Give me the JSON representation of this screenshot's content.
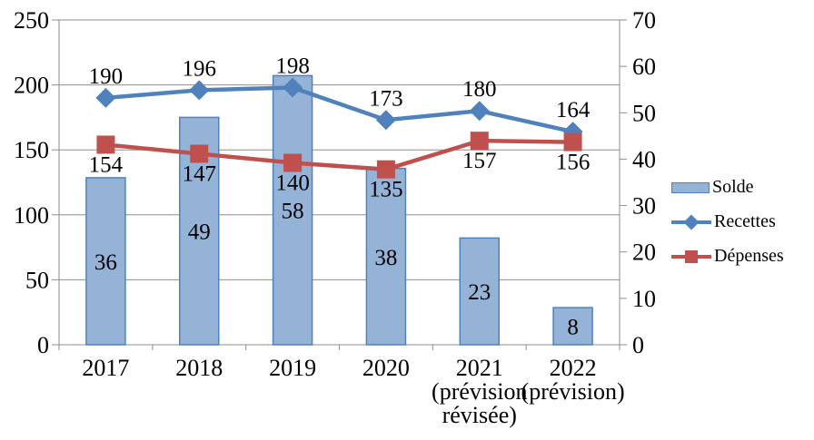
{
  "chart_data": {
    "type": "combo",
    "title": "",
    "categories": [
      [
        "2017"
      ],
      [
        "2018"
      ],
      [
        "2019"
      ],
      [
        "2020"
      ],
      [
        "2021",
        "(prévision",
        "révisée)"
      ],
      [
        "2022",
        "(prévision)"
      ]
    ],
    "series": [
      {
        "name": "Solde",
        "type": "bar",
        "axis": "right",
        "values": [
          36,
          49,
          58,
          38,
          23,
          8
        ],
        "fill": "#95B3D7",
        "border": "#4F81BD",
        "label_position": "center"
      },
      {
        "name": "Recettes",
        "type": "line",
        "axis": "left",
        "marker": "diamond",
        "values": [
          190,
          196,
          198,
          173,
          180,
          164
        ],
        "color": "#4F81BD",
        "label_position": "above"
      },
      {
        "name": "Dépenses",
        "type": "line",
        "axis": "left",
        "marker": "square",
        "values": [
          154,
          147,
          140,
          135,
          157,
          156
        ],
        "color": "#C0504D",
        "label_position": "below"
      }
    ],
    "axis_left": {
      "min": 0,
      "max": 250,
      "step": 50,
      "tick_labels": [
        "0",
        "50",
        "100",
        "150",
        "200",
        "250"
      ]
    },
    "axis_right": {
      "min": 0,
      "max": 70,
      "step": 10,
      "tick_labels": [
        "0",
        "10",
        "20",
        "30",
        "40",
        "50",
        "60",
        "70"
      ]
    },
    "legend": {
      "position": "right"
    },
    "grid": {
      "show": true,
      "color": "#8E8E8E"
    },
    "colors": {
      "axis": "#8E8E8E",
      "text": "#000000",
      "background": "#FFFFFF"
    }
  }
}
